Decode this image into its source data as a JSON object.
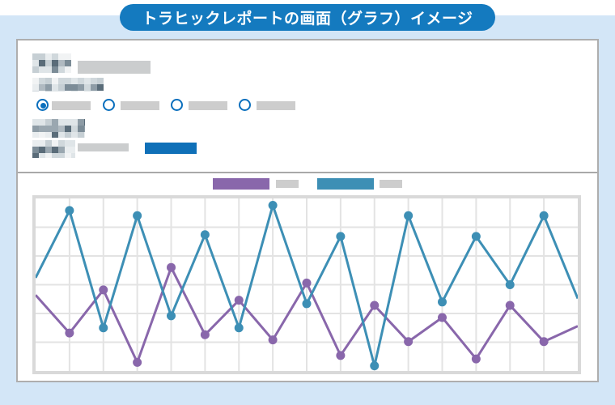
{
  "banner": {
    "title": "トラヒックレポートの画面（グラフ）イメージ"
  },
  "form": {
    "field1": {
      "label_redacted": true,
      "value_redacted": true
    },
    "section_label": {
      "redacted": true
    },
    "radio_group": {
      "options": [
        {
          "label_redacted": true,
          "selected": true
        },
        {
          "label_redacted": true,
          "selected": false
        },
        {
          "label_redacted": true,
          "selected": false
        },
        {
          "label_redacted": true,
          "selected": false
        }
      ]
    },
    "field2": {
      "label_redacted": true,
      "value_redacted": true
    },
    "submit_button": {
      "label": ""
    }
  },
  "legend": [
    {
      "name_redacted": true,
      "color": "#8967ab"
    },
    {
      "name_redacted": true,
      "color": "#3d8fb5"
    }
  ],
  "chart_data": {
    "type": "line",
    "title": "",
    "xlabel": "",
    "ylabel": "",
    "x": [
      0,
      1,
      2,
      3,
      4,
      5,
      6,
      7,
      8,
      9,
      10,
      11,
      12,
      13,
      14,
      15,
      16
    ],
    "series": [
      {
        "name": "series-purple",
        "color": "#8967ab",
        "values": [
          44,
          22,
          47,
          5,
          60,
          21,
          41,
          18,
          51,
          9,
          38,
          17,
          31,
          7,
          38,
          17,
          26
        ]
      },
      {
        "name": "series-blue",
        "color": "#3d8fb5",
        "values": [
          54,
          93,
          25,
          90,
          32,
          79,
          25,
          96,
          39,
          78,
          3,
          90,
          40,
          78,
          50,
          90,
          42
        ]
      }
    ],
    "ylim": [
      0,
      100
    ],
    "grid": {
      "cols": 16,
      "rows": 6,
      "visible": true
    },
    "legend_position": "top-center",
    "axis_tick_labels": "none",
    "marker_indices": [
      1,
      2,
      3,
      4,
      5,
      6,
      7,
      8,
      9,
      10,
      11,
      12,
      13,
      14,
      15
    ]
  },
  "colors": {
    "banner_bg": "#147abf",
    "page_band": "#d3e6f7",
    "panel_border": "#aeaeae",
    "radio_accent": "#0a6fbd",
    "button_bg": "#0f70b8",
    "redacted_box": "#cdcdcd",
    "chart_frame": "#d9d9d9",
    "grid_line": "#e3e3e3",
    "series_purple": "#8967ab",
    "series_blue": "#3d8fb5"
  }
}
